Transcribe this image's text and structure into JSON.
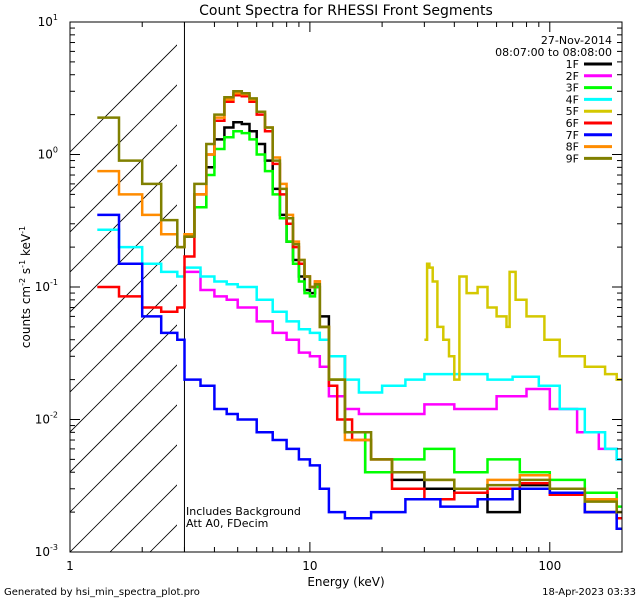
{
  "chart_data": {
    "type": "line",
    "title": "Count Spectra for RHESSI Front Segments",
    "xlabel": "Energy (keV)",
    "ylabel_parts": {
      "a": "counts cm",
      "b": "-2",
      "c": " s",
      "d": "-1",
      "e": " keV",
      "f": "-1"
    },
    "x_scale": "log",
    "y_scale": "log",
    "xlim": [
      1.0,
      200.0
    ],
    "ylim": [
      0.001,
      10.0
    ],
    "x_ticks": [
      {
        "v": 1,
        "label": "1"
      },
      {
        "v": 10,
        "label": "10"
      },
      {
        "v": 100,
        "label": "100"
      }
    ],
    "y_ticks": [
      {
        "v": 0.001,
        "base": "10",
        "exp": "-3"
      },
      {
        "v": 0.01,
        "base": "10",
        "exp": "-2"
      },
      {
        "v": 0.1,
        "base": "10",
        "exp": "-1"
      },
      {
        "v": 1,
        "base": "10",
        "exp": "0"
      },
      {
        "v": 10,
        "base": "10",
        "exp": "1"
      }
    ],
    "shaded_region_x": [
      1.0,
      3.0
    ],
    "info_lines": [
      "27-Nov-2014",
      "08:07:00 to 08:08:00"
    ],
    "annotations": [
      "Includes Background",
      "Att A0, FDecim"
    ],
    "series": [
      {
        "name": "1F",
        "color": "#000000",
        "points": [
          [
            3.0,
            0.24
          ],
          [
            3.3,
            0.4
          ],
          [
            3.7,
            0.8
          ],
          [
            4.0,
            1.3
          ],
          [
            4.4,
            1.6
          ],
          [
            4.8,
            1.75
          ],
          [
            5.2,
            1.7
          ],
          [
            5.6,
            1.5
          ],
          [
            6.0,
            1.2
          ],
          [
            6.5,
            0.9
          ],
          [
            7.0,
            0.55
          ],
          [
            7.5,
            0.35
          ],
          [
            8.0,
            0.22
          ],
          [
            8.5,
            0.16
          ],
          [
            9.0,
            0.12
          ],
          [
            9.5,
            0.095
          ],
          [
            10.0,
            0.09
          ],
          [
            10.5,
            0.1
          ],
          [
            11.0,
            0.06
          ],
          [
            12.0,
            0.03
          ],
          [
            14.0,
            0.008
          ],
          [
            17.0,
            0.004
          ],
          [
            22.0,
            0.0035
          ],
          [
            30.0,
            0.003
          ],
          [
            40.0,
            0.0028
          ],
          [
            55.0,
            0.002
          ],
          [
            75.0,
            0.0032
          ],
          [
            100.0,
            0.0028
          ],
          [
            140.0,
            0.002
          ],
          [
            190.0,
            0.0018
          ]
        ]
      },
      {
        "name": "2F",
        "color": "#ff00ff",
        "points": [
          [
            3.0,
            0.13
          ],
          [
            3.5,
            0.095
          ],
          [
            4.0,
            0.085
          ],
          [
            4.5,
            0.08
          ],
          [
            5.0,
            0.07
          ],
          [
            6.0,
            0.055
          ],
          [
            7.0,
            0.045
          ],
          [
            8.0,
            0.04
          ],
          [
            9.0,
            0.032
          ],
          [
            10.0,
            0.03
          ],
          [
            11.0,
            0.025
          ],
          [
            12.0,
            0.015
          ],
          [
            14.0,
            0.012
          ],
          [
            16.0,
            0.011
          ],
          [
            20.0,
            0.011
          ],
          [
            30.0,
            0.013
          ],
          [
            40.0,
            0.012
          ],
          [
            60.0,
            0.015
          ],
          [
            80.0,
            0.017
          ],
          [
            100.0,
            0.012
          ],
          [
            130.0,
            0.008
          ],
          [
            160.0,
            0.006
          ],
          [
            190.0,
            0.005
          ]
        ]
      },
      {
        "name": "3F",
        "color": "#00ff00",
        "points": [
          [
            3.0,
            0.25
          ],
          [
            3.3,
            0.4
          ],
          [
            3.7,
            0.7
          ],
          [
            4.0,
            1.1
          ],
          [
            4.4,
            1.35
          ],
          [
            4.8,
            1.5
          ],
          [
            5.2,
            1.45
          ],
          [
            5.6,
            1.3
          ],
          [
            6.0,
            1.0
          ],
          [
            6.5,
            0.75
          ],
          [
            7.0,
            0.5
          ],
          [
            7.5,
            0.33
          ],
          [
            8.0,
            0.22
          ],
          [
            8.5,
            0.15
          ],
          [
            9.0,
            0.11
          ],
          [
            9.5,
            0.09
          ],
          [
            10.0,
            0.085
          ],
          [
            10.5,
            0.1
          ],
          [
            11.0,
            0.05
          ],
          [
            12.0,
            0.02
          ],
          [
            14.0,
            0.008
          ],
          [
            17.0,
            0.004
          ],
          [
            22.0,
            0.005
          ],
          [
            30.0,
            0.006
          ],
          [
            40.0,
            0.004
          ],
          [
            55.0,
            0.005
          ],
          [
            75.0,
            0.004
          ],
          [
            100.0,
            0.0035
          ],
          [
            140.0,
            0.0028
          ],
          [
            190.0,
            0.0022
          ]
        ]
      },
      {
        "name": "4F",
        "color": "#00ffff",
        "points": [
          [
            1.3,
            0.27
          ],
          [
            1.6,
            0.2
          ],
          [
            2.0,
            0.15
          ],
          [
            2.4,
            0.13
          ],
          [
            2.8,
            0.12
          ],
          [
            3.0,
            0.14
          ],
          [
            3.5,
            0.12
          ],
          [
            4.0,
            0.11
          ],
          [
            4.5,
            0.105
          ],
          [
            5.0,
            0.1
          ],
          [
            6.0,
            0.08
          ],
          [
            7.0,
            0.065
          ],
          [
            8.0,
            0.055
          ],
          [
            9.0,
            0.048
          ],
          [
            10.0,
            0.045
          ],
          [
            11.0,
            0.04
          ],
          [
            12.0,
            0.03
          ],
          [
            14.0,
            0.02
          ],
          [
            16.0,
            0.016
          ],
          [
            20.0,
            0.018
          ],
          [
            25.0,
            0.02
          ],
          [
            30.0,
            0.022
          ],
          [
            40.0,
            0.022
          ],
          [
            55.0,
            0.02
          ],
          [
            70.0,
            0.021
          ],
          [
            90.0,
            0.018
          ],
          [
            110.0,
            0.012
          ],
          [
            140.0,
            0.008
          ],
          [
            170.0,
            0.006
          ],
          [
            190.0,
            0.005
          ]
        ]
      },
      {
        "name": "5F",
        "color": "#d4c800",
        "points": [
          [
            30.0,
            0.04
          ],
          [
            30.8,
            0.15
          ],
          [
            31.5,
            0.14
          ],
          [
            32.5,
            0.11
          ],
          [
            34.0,
            0.05
          ],
          [
            36.0,
            0.04
          ],
          [
            38.0,
            0.03
          ],
          [
            40.0,
            0.02
          ],
          [
            42.0,
            0.12
          ],
          [
            45.0,
            0.09
          ],
          [
            50.0,
            0.1
          ],
          [
            55.0,
            0.07
          ],
          [
            60.0,
            0.06
          ],
          [
            66.0,
            0.05
          ],
          [
            68.0,
            0.13
          ],
          [
            72.0,
            0.08
          ],
          [
            80.0,
            0.06
          ],
          [
            95.0,
            0.04
          ],
          [
            110.0,
            0.03
          ],
          [
            140.0,
            0.025
          ],
          [
            170.0,
            0.022
          ],
          [
            190.0,
            0.02
          ]
        ]
      },
      {
        "name": "6F",
        "color": "#ff0000",
        "points": [
          [
            1.3,
            0.1
          ],
          [
            1.6,
            0.085
          ],
          [
            2.0,
            0.07
          ],
          [
            2.4,
            0.065
          ],
          [
            2.8,
            0.07
          ],
          [
            3.0,
            0.17
          ],
          [
            3.3,
            0.5
          ],
          [
            3.7,
            1.0
          ],
          [
            4.0,
            1.8
          ],
          [
            4.4,
            2.5
          ],
          [
            4.8,
            2.8
          ],
          [
            5.2,
            2.75
          ],
          [
            5.6,
            2.5
          ],
          [
            6.0,
            2.0
          ],
          [
            6.5,
            1.5
          ],
          [
            7.0,
            0.85
          ],
          [
            7.5,
            0.5
          ],
          [
            8.0,
            0.3
          ],
          [
            8.5,
            0.2
          ],
          [
            9.0,
            0.15
          ],
          [
            9.5,
            0.12
          ],
          [
            10.0,
            0.1
          ],
          [
            10.5,
            0.11
          ],
          [
            11.0,
            0.05
          ],
          [
            12.0,
            0.018
          ],
          [
            13.0,
            0.01
          ],
          [
            15.0,
            0.007
          ],
          [
            18.0,
            0.005
          ],
          [
            22.0,
            0.003
          ],
          [
            30.0,
            0.0025
          ],
          [
            40.0,
            0.0028
          ],
          [
            55.0,
            0.003
          ],
          [
            75.0,
            0.0033
          ],
          [
            100.0,
            0.0027
          ],
          [
            140.0,
            0.002
          ],
          [
            190.0,
            0.0018
          ]
        ]
      },
      {
        "name": "7F",
        "color": "#0000ff",
        "points": [
          [
            1.3,
            0.35
          ],
          [
            1.6,
            0.15
          ],
          [
            2.0,
            0.06
          ],
          [
            2.4,
            0.045
          ],
          [
            2.8,
            0.04
          ],
          [
            3.0,
            0.02
          ],
          [
            3.5,
            0.018
          ],
          [
            4.0,
            0.012
          ],
          [
            4.5,
            0.011
          ],
          [
            5.0,
            0.01
          ],
          [
            6.0,
            0.008
          ],
          [
            7.0,
            0.007
          ],
          [
            8.0,
            0.006
          ],
          [
            9.0,
            0.005
          ],
          [
            10.0,
            0.0045
          ],
          [
            11.0,
            0.003
          ],
          [
            12.0,
            0.002
          ],
          [
            14.0,
            0.0018
          ],
          [
            18.0,
            0.002
          ],
          [
            25.0,
            0.0025
          ],
          [
            35.0,
            0.0022
          ],
          [
            50.0,
            0.0025
          ],
          [
            70.0,
            0.003
          ],
          [
            100.0,
            0.0028
          ],
          [
            140.0,
            0.002
          ],
          [
            190.0,
            0.0015
          ]
        ]
      },
      {
        "name": "8F",
        "color": "#ff8c00",
        "points": [
          [
            1.3,
            0.75
          ],
          [
            1.6,
            0.5
          ],
          [
            2.0,
            0.35
          ],
          [
            2.4,
            0.25
          ],
          [
            2.8,
            0.2
          ],
          [
            3.0,
            0.25
          ],
          [
            3.3,
            0.5
          ],
          [
            3.7,
            1.0
          ],
          [
            4.0,
            1.9
          ],
          [
            4.4,
            2.6
          ],
          [
            4.8,
            2.9
          ],
          [
            5.2,
            2.85
          ],
          [
            5.6,
            2.6
          ],
          [
            6.0,
            2.1
          ],
          [
            6.5,
            1.6
          ],
          [
            7.0,
            0.95
          ],
          [
            7.5,
            0.6
          ],
          [
            8.0,
            0.35
          ],
          [
            8.5,
            0.22
          ],
          [
            9.0,
            0.16
          ],
          [
            9.5,
            0.12
          ],
          [
            10.0,
            0.1
          ],
          [
            10.5,
            0.11
          ],
          [
            11.0,
            0.05
          ],
          [
            12.0,
            0.02
          ],
          [
            14.0,
            0.007
          ],
          [
            18.0,
            0.005
          ],
          [
            22.0,
            0.004
          ],
          [
            30.0,
            0.0035
          ],
          [
            40.0,
            0.003
          ],
          [
            55.0,
            0.0035
          ],
          [
            75.0,
            0.0038
          ],
          [
            100.0,
            0.003
          ],
          [
            140.0,
            0.0025
          ],
          [
            190.0,
            0.002
          ]
        ]
      },
      {
        "name": "9F",
        "color": "#808000",
        "points": [
          [
            1.3,
            1.9
          ],
          [
            1.6,
            0.9
          ],
          [
            2.0,
            0.6
          ],
          [
            2.4,
            0.32
          ],
          [
            2.8,
            0.2
          ],
          [
            3.0,
            0.24
          ],
          [
            3.3,
            0.6
          ],
          [
            3.7,
            1.2
          ],
          [
            4.0,
            2.0
          ],
          [
            4.4,
            2.7
          ],
          [
            4.8,
            3.0
          ],
          [
            5.2,
            2.9
          ],
          [
            5.6,
            2.65
          ],
          [
            6.0,
            2.1
          ],
          [
            6.5,
            1.6
          ],
          [
            7.0,
            0.9
          ],
          [
            7.5,
            0.55
          ],
          [
            8.0,
            0.33
          ],
          [
            8.5,
            0.21
          ],
          [
            9.0,
            0.16
          ],
          [
            9.5,
            0.12
          ],
          [
            10.0,
            0.1
          ],
          [
            10.5,
            0.105
          ],
          [
            11.0,
            0.05
          ],
          [
            12.0,
            0.02
          ],
          [
            14.0,
            0.008
          ],
          [
            18.0,
            0.005
          ],
          [
            22.0,
            0.004
          ],
          [
            30.0,
            0.0035
          ],
          [
            40.0,
            0.003
          ],
          [
            55.0,
            0.0032
          ],
          [
            75.0,
            0.0035
          ],
          [
            100.0,
            0.003
          ],
          [
            140.0,
            0.0024
          ],
          [
            190.0,
            0.002
          ]
        ]
      }
    ]
  },
  "footer": {
    "left": "Generated by hsi_min_spectra_plot.pro",
    "right": "18-Apr-2023 03:33"
  }
}
